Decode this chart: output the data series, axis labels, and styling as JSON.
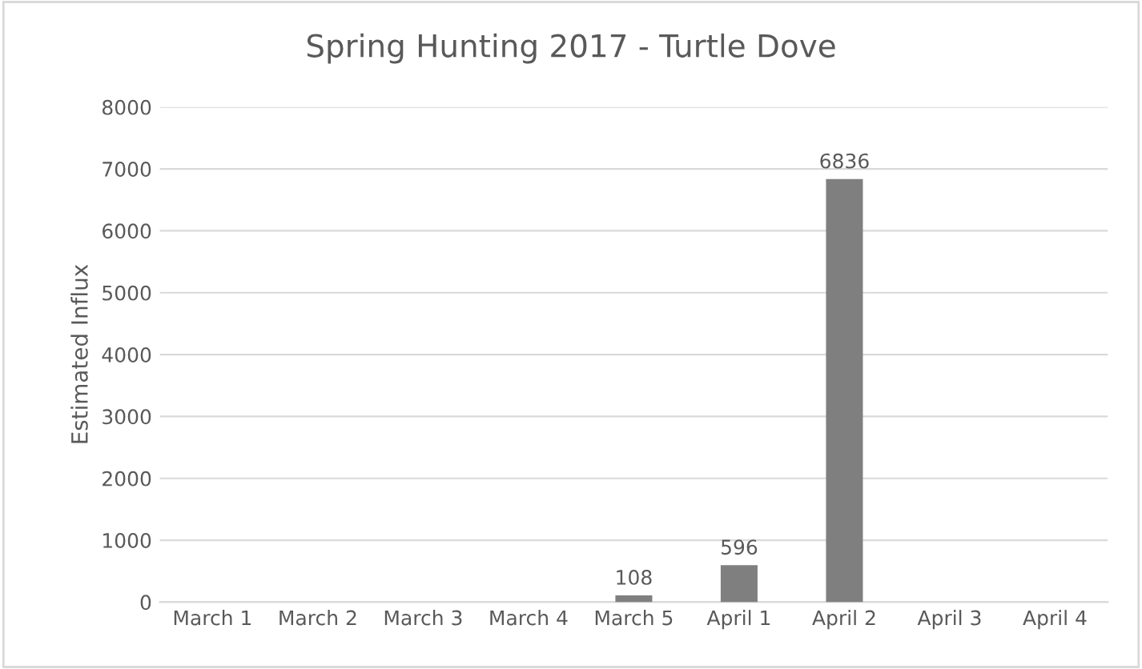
{
  "chart_data": {
    "type": "bar",
    "title": "Spring Hunting 2017 - Turtle Dove",
    "ylabel": "Estimated Influx",
    "categories": [
      "March 1",
      "March 2",
      "March 3",
      "March 4",
      "March 5",
      "April 1",
      "April 2",
      "April 3",
      "April 4"
    ],
    "values": [
      null,
      null,
      null,
      null,
      108,
      596,
      6836,
      null,
      null
    ],
    "color": "#7f7f7f",
    "ylim": [
      0,
      8000
    ],
    "yticks": [
      0,
      1000,
      2000,
      3000,
      4000,
      5000,
      6000,
      7000,
      8000
    ],
    "grid": "y",
    "data_labels": true
  }
}
